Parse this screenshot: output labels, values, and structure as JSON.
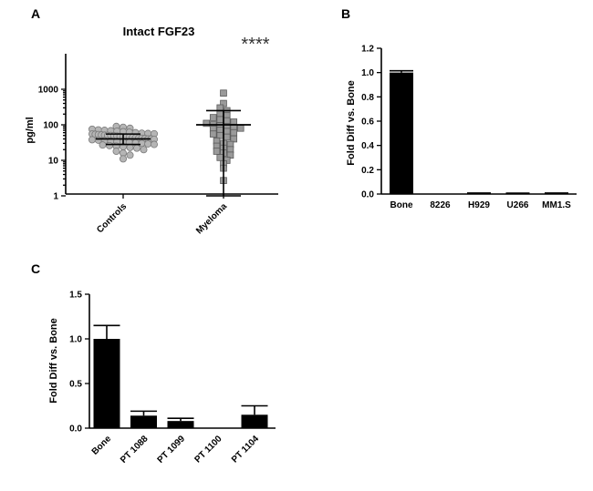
{
  "chart_data": [
    {
      "panel": "A",
      "type": "scatter",
      "title": "Intact FGF23",
      "ylabel": "pg/ml",
      "yscale": "log",
      "ylim": [
        0.1,
        1000
      ],
      "yticks": [
        "1",
        "10",
        "100",
        "1000"
      ],
      "categories": [
        "Controls",
        "Myeloma"
      ],
      "annotation": "****",
      "series": [
        {
          "values": [
            90,
            85,
            80,
            75,
            72,
            70,
            68,
            66,
            64,
            62,
            60,
            58,
            57,
            56,
            55,
            54,
            53,
            52,
            51,
            50,
            50,
            49,
            48,
            47,
            46,
            45,
            45,
            44,
            43,
            42,
            42,
            41,
            40,
            40,
            39,
            38,
            37,
            36,
            35,
            34,
            33,
            32,
            31,
            30,
            29,
            28,
            27,
            26,
            25,
            24,
            23,
            22,
            20,
            18,
            16,
            14,
            11
          ],
          "mean": 40,
          "error_low": 28,
          "error_high": 55
        },
        {
          "values": [
            780,
            400,
            300,
            250,
            200,
            180,
            160,
            140,
            130,
            120,
            110,
            100,
            95,
            90,
            85,
            80,
            75,
            70,
            65,
            60,
            55,
            50,
            45,
            40,
            35,
            30,
            28,
            25,
            22,
            20,
            18,
            16,
            14,
            12,
            10,
            8,
            6,
            2.7
          ],
          "mean": 100,
          "error_low": 1,
          "error_high": 250
        }
      ]
    },
    {
      "panel": "B",
      "type": "bar",
      "ylabel": "Fold Diff vs. Bone",
      "ylim": [
        0,
        1.2
      ],
      "yticks": [
        "0.0",
        "0.2",
        "0.4",
        "0.6",
        "0.8",
        "1.0",
        "1.2"
      ],
      "categories": [
        "Bone",
        "8226",
        "H929",
        "U266",
        "MM1.S"
      ],
      "values": [
        1.0,
        0.0,
        0.005,
        0.004,
        0.005
      ],
      "errors": [
        0.015,
        0,
        0.003,
        0.003,
        0.003
      ]
    },
    {
      "panel": "C",
      "type": "bar",
      "ylabel": "Fold Diff vs. Bone",
      "ylim": [
        0,
        1.5
      ],
      "yticks": [
        "0.0",
        "0.5",
        "1.0",
        "1.5"
      ],
      "categories": [
        "Bone",
        "PT 1088",
        "PT 1099",
        "PT 1100",
        "PT 1104"
      ],
      "values": [
        1.0,
        0.14,
        0.08,
        0.0,
        0.15
      ],
      "errors": [
        0.15,
        0.05,
        0.03,
        0,
        0.1
      ]
    }
  ]
}
